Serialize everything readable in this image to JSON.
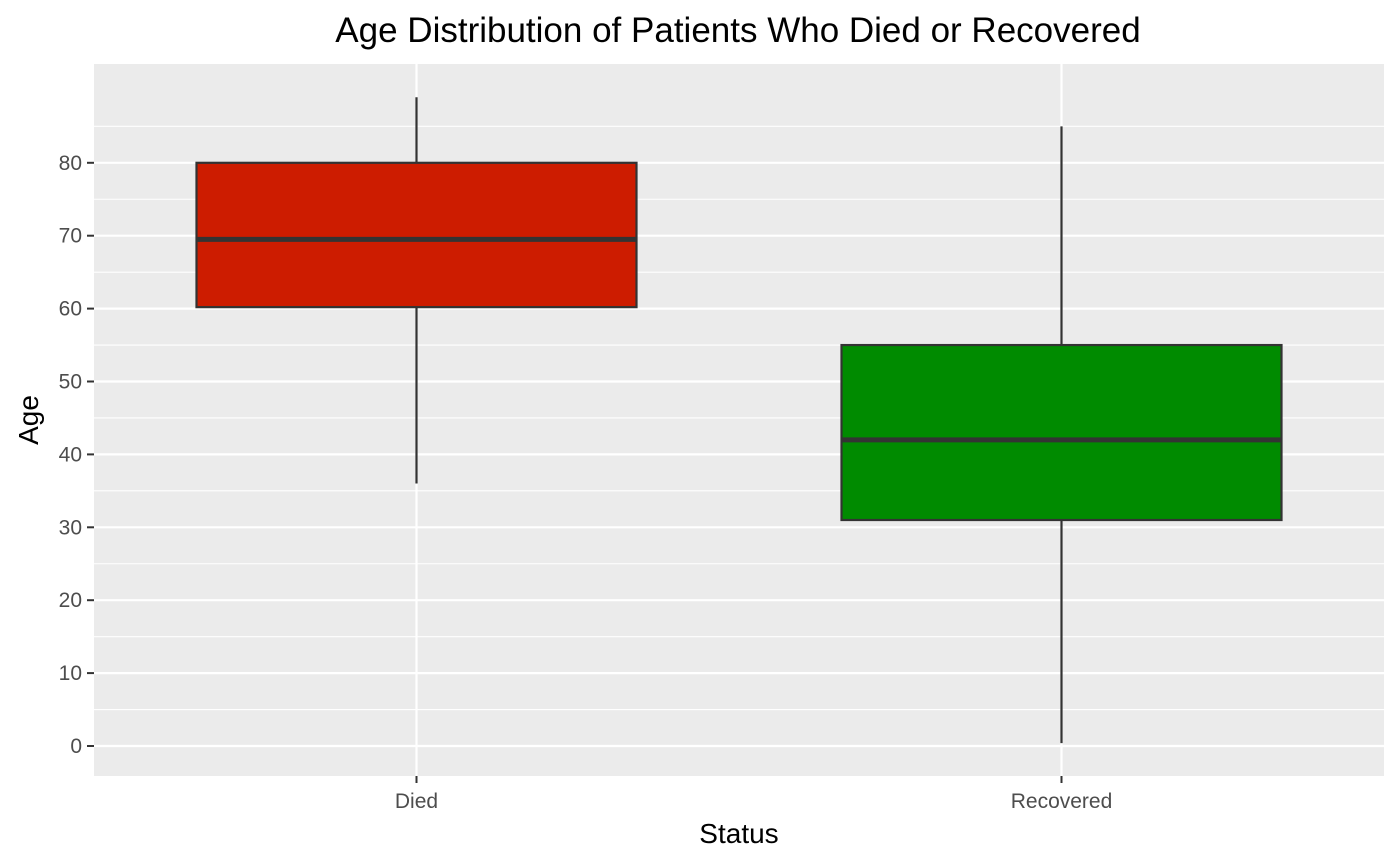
{
  "chart_data": {
    "type": "boxplot",
    "title": "Age Distribution of Patients Who Died or Recovered",
    "xlabel": "Status",
    "ylabel": "Age",
    "ylim": [
      -4,
      93
    ],
    "yticks": [
      0,
      10,
      20,
      30,
      40,
      50,
      60,
      70,
      80
    ],
    "grid": true,
    "legend": "none",
    "categories": [
      "Died",
      "Recovered"
    ],
    "boxes": [
      {
        "category": "Died",
        "whisker_low": 36,
        "q1": 60.2,
        "median": 69.5,
        "q3": 80,
        "whisker_high": 89,
        "color": "#cd1c00"
      },
      {
        "category": "Recovered",
        "whisker_low": 0.4,
        "q1": 31,
        "median": 42,
        "q3": 55,
        "whisker_high": 85,
        "color": "#008b00"
      }
    ],
    "colors": {
      "panel": "#ebebeb",
      "grid_major": "#ffffff",
      "outline": "#333333",
      "tick_text": "#4d4d4d"
    }
  }
}
